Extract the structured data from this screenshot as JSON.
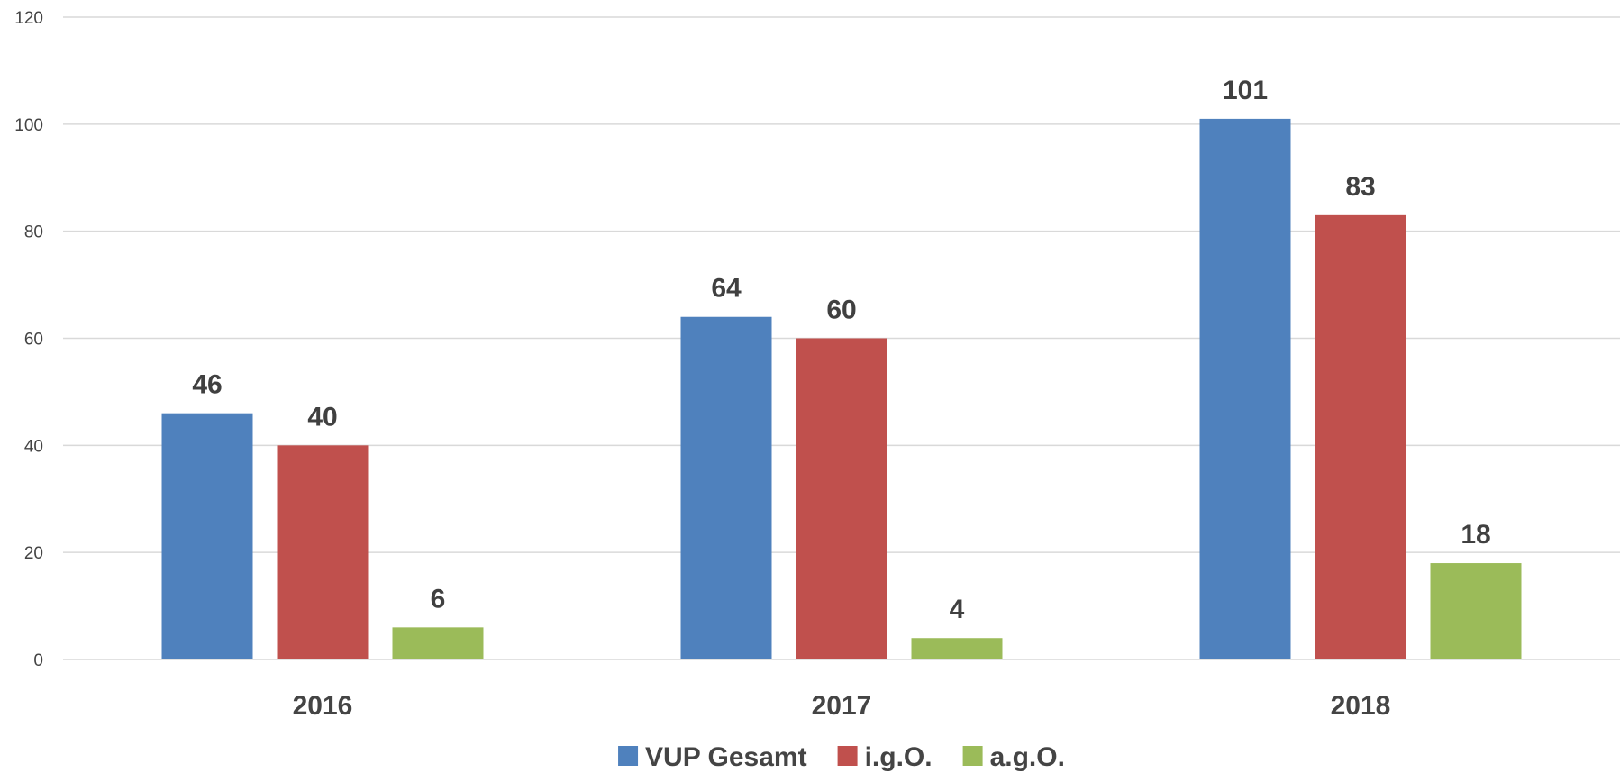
{
  "chart_data": {
    "type": "bar",
    "categories": [
      "2016",
      "2017",
      "2018"
    ],
    "series": [
      {
        "name": "VUP Gesamt",
        "values": [
          46,
          64,
          101
        ],
        "color": "#4f81bd"
      },
      {
        "name": "i.g.O.",
        "values": [
          40,
          60,
          83
        ],
        "color": "#c0504d"
      },
      {
        "name": "a.g.O.",
        "values": [
          6,
          4,
          18
        ],
        "color": "#9bbb59"
      }
    ],
    "ylim": [
      0,
      120
    ],
    "yticks": [
      0,
      20,
      40,
      60,
      80,
      100,
      120
    ],
    "grid": true,
    "legend": "bottom",
    "data_labels": true
  }
}
